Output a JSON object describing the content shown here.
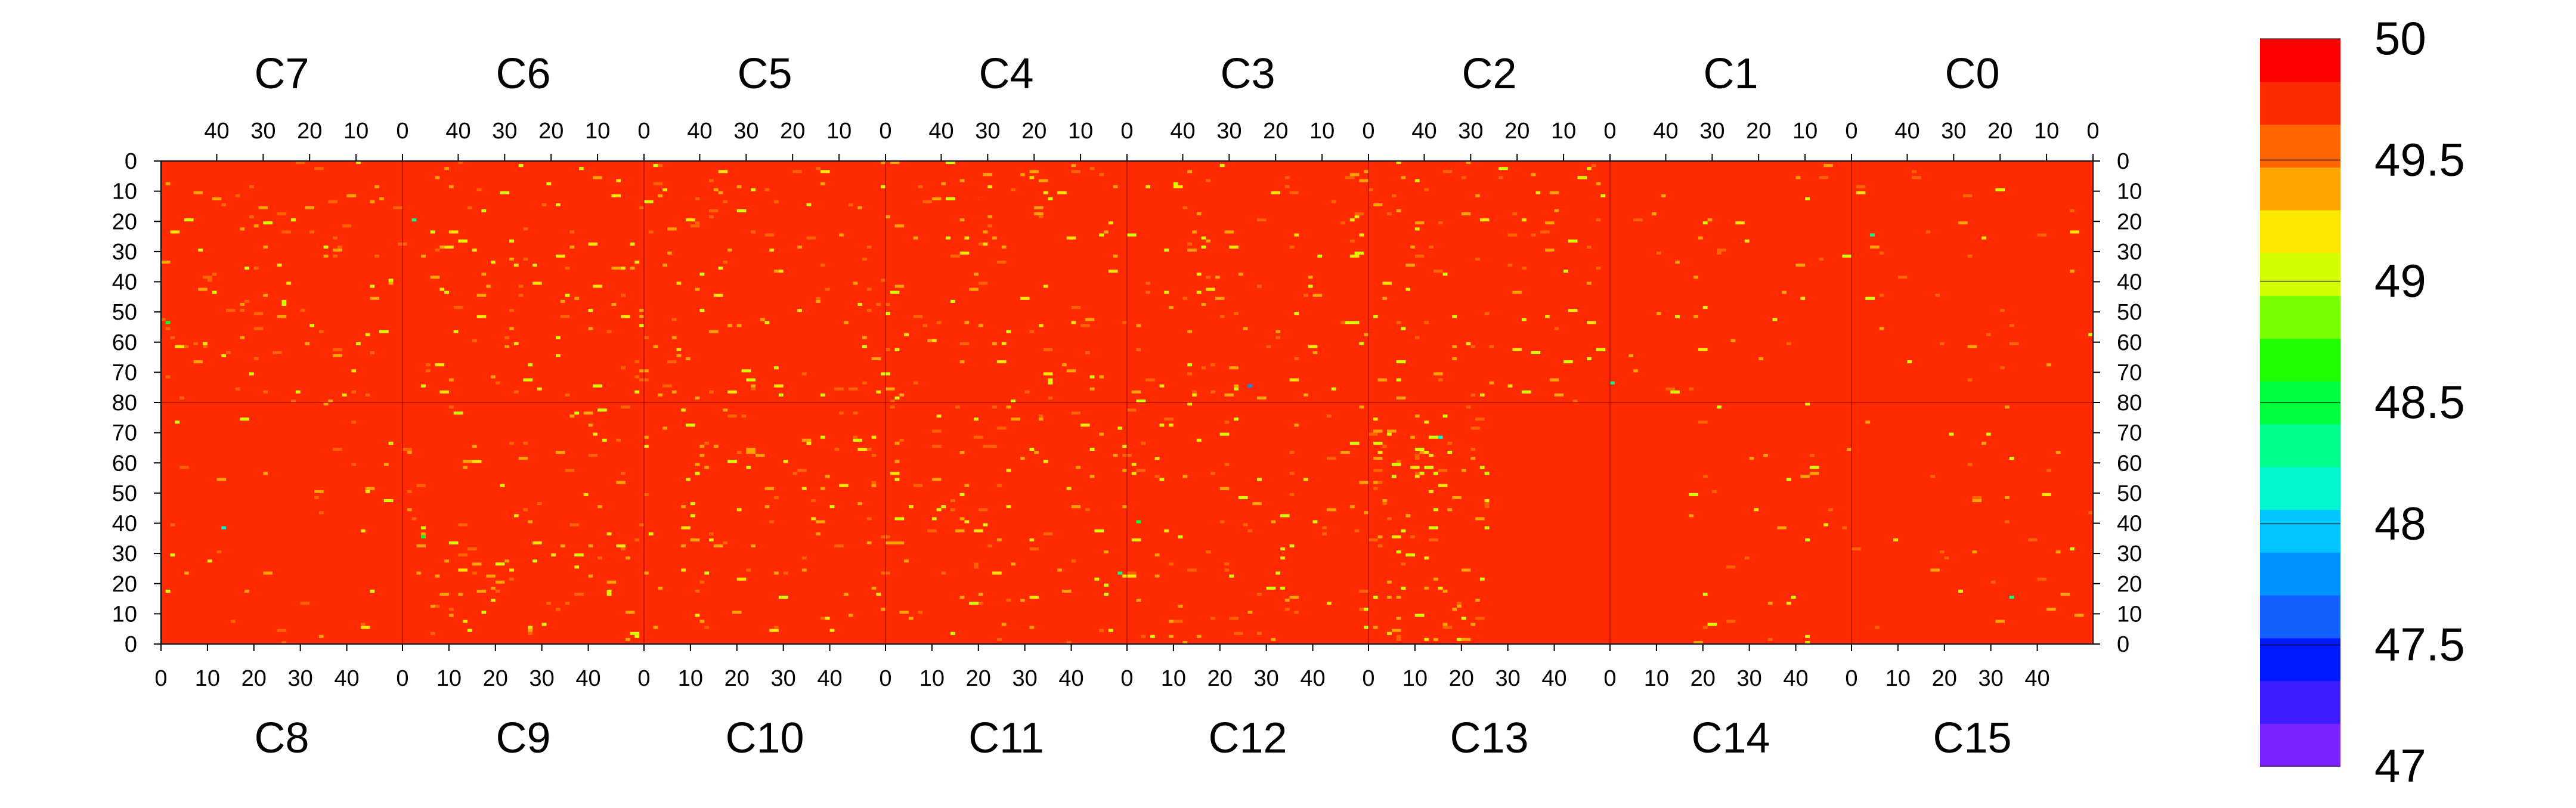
{
  "chart_data": {
    "type": "heatmap",
    "title": "",
    "colorbar": {
      "min": 47,
      "max": 50,
      "tick_labels": [
        "50",
        "49.5",
        "49",
        "48.5",
        "48",
        "47.5",
        "47"
      ],
      "tick_values": [
        50,
        49.5,
        49,
        48.5,
        48,
        47.5,
        47
      ],
      "levels": [
        47.0,
        47.2,
        47.4,
        47.6,
        47.8,
        48.0,
        48.2,
        48.4,
        48.6,
        48.8,
        49.0,
        49.2,
        49.4,
        49.6,
        49.8
      ],
      "colors": [
        "#7a22ff",
        "#3d1cff",
        "#0018ff",
        "#1460ff",
        "#0092ff",
        "#00c4ff",
        "#00f7cf",
        "#00ff8c",
        "#00ff3c",
        "#20ff00",
        "#7aff00",
        "#d4ff00",
        "#ffe800",
        "#ffa400",
        "#ff6400",
        "#ff2a00",
        "#ff0000"
      ]
    },
    "background_value": 50,
    "top_chips": [
      "C7",
      "C6",
      "C5",
      "C4",
      "C3",
      "C2",
      "C1",
      "C0"
    ],
    "bottom_chips": [
      "C8",
      "C9",
      "C10",
      "C11",
      "C12",
      "C13",
      "C14",
      "C15"
    ],
    "top_x_tick_labels": [
      "40",
      "30",
      "20",
      "10",
      "0"
    ],
    "top_x_tick_values": [
      40,
      30,
      20,
      10,
      0
    ],
    "bottom_x_tick_labels": [
      "0",
      "10",
      "20",
      "30",
      "40"
    ],
    "bottom_x_tick_values": [
      0,
      10,
      20,
      30,
      40
    ],
    "columns_per_chip": 52,
    "rows_per_half": 80,
    "y_tick_labels_top_half": [
      "0",
      "10",
      "20",
      "30",
      "40",
      "50",
      "60",
      "70",
      "80"
    ],
    "y_tick_labels_bottom_half": [
      "70",
      "60",
      "50",
      "40",
      "30",
      "20",
      "10",
      "0"
    ],
    "dense_chips": [
      "C2",
      "C3",
      "C4",
      "C5",
      "C6",
      "C7",
      "C9",
      "C10",
      "C11",
      "C12",
      "C13"
    ],
    "sparse_chips": [
      "C0",
      "C1",
      "C8",
      "C14",
      "C15"
    ],
    "empty_regions": [
      "C13 columns 26-51",
      "C14 columns 0-15"
    ],
    "notable_low_values": [
      {
        "chip": "C6",
        "col": 2,
        "row": 19,
        "value": 48.2
      },
      {
        "chip": "C7",
        "col": 1,
        "row": 53,
        "value": 48.4
      },
      {
        "chip": "C3",
        "col": 26,
        "row": 74,
        "value": 47.6
      },
      {
        "chip": "C13",
        "col": 15,
        "row": 68,
        "value": 48.0
      },
      {
        "chip": "C1",
        "col": 0,
        "row": 73,
        "value": 48.2
      },
      {
        "chip": "C0",
        "col": 4,
        "row": 24,
        "value": 48.3
      },
      {
        "chip": "C11",
        "col": 50,
        "row": 23,
        "value": 48.3
      },
      {
        "chip": "C12",
        "col": 2,
        "row": 40,
        "value": 48.4
      },
      {
        "chip": "C8",
        "col": 13,
        "row": 38,
        "value": 48.0
      },
      {
        "chip": "C9",
        "col": 4,
        "row": 35,
        "value": 48.4
      },
      {
        "chip": "C15",
        "col": 34,
        "row": 15,
        "value": 48.2
      }
    ]
  }
}
